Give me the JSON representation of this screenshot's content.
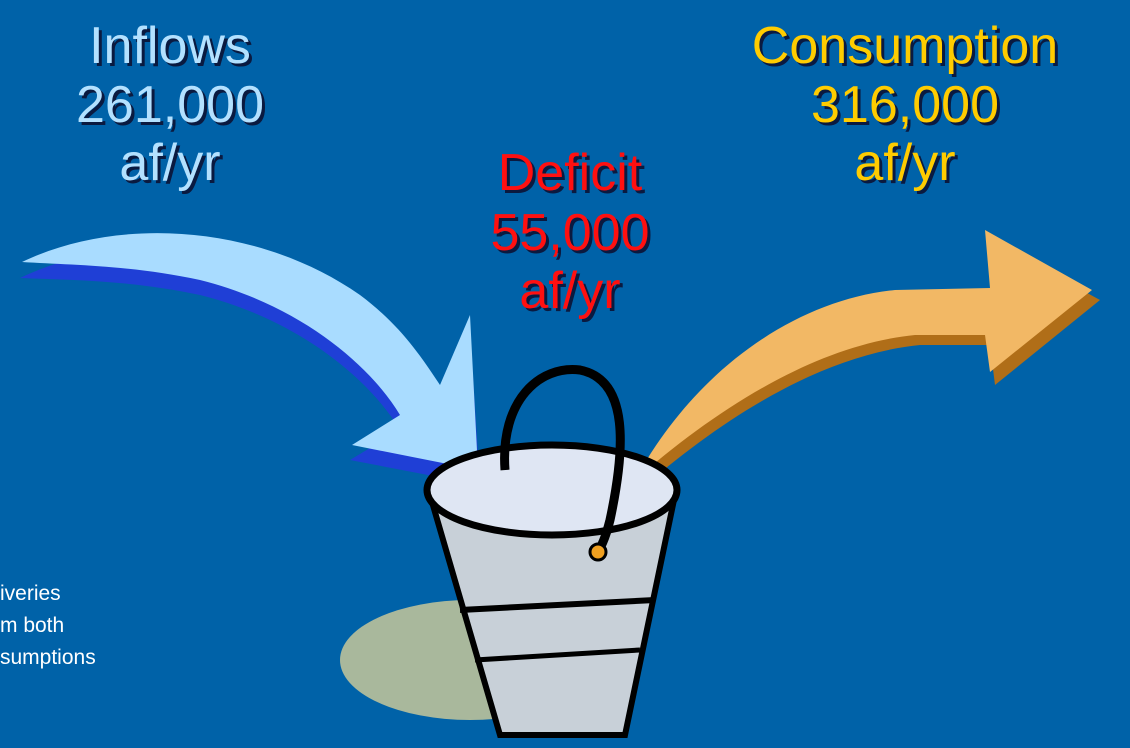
{
  "inflows": {
    "label": "Inflows",
    "amount": "261,000",
    "unit": "af/yr"
  },
  "deficit": {
    "label": "Deficit",
    "amount": "55,000",
    "unit": "af/yr"
  },
  "consumption": {
    "label": "Consumption",
    "amount": "316,000",
    "unit": "af/yr"
  },
  "note": {
    "lines": [
      "iveries",
      "m both",
      "sumptions"
    ]
  }
}
